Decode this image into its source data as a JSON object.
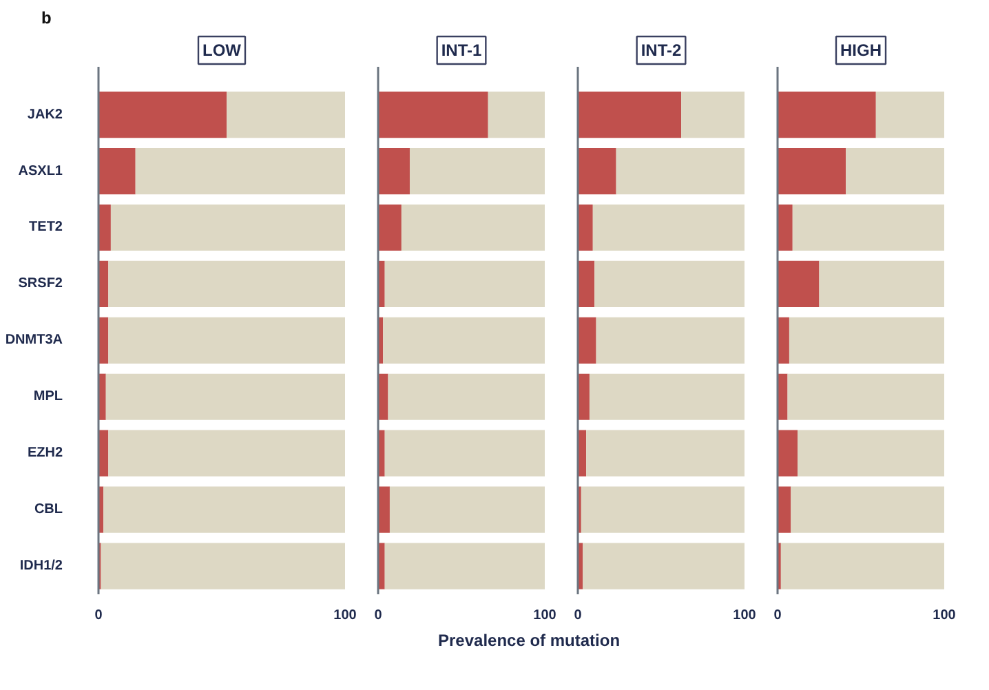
{
  "chart_data": [
    {
      "type": "bar",
      "orientation": "horizontal",
      "stacked": true,
      "title": "LOW",
      "xlabel": "Prevalence of mutation",
      "annotations": [
        "b"
      ],
      "categories": [
        "JAK2",
        "ASXL1",
        "TET2",
        "SRSF2",
        "DNMT3A",
        "MPL",
        "EZH2",
        "CBL",
        "IDH1/2"
      ],
      "series": [
        {
          "color": "#c0504d",
          "values": [
            52,
            15,
            5,
            4,
            4,
            3,
            4,
            2,
            1
          ]
        },
        {
          "color": "#ddd8c4",
          "values": [
            48,
            85,
            95,
            96,
            96,
            97,
            96,
            98,
            99
          ]
        }
      ],
      "xlim": [
        0,
        100
      ],
      "xticks": [
        0,
        100
      ],
      "grid": false
    },
    {
      "type": "bar",
      "orientation": "horizontal",
      "stacked": true,
      "title": "INT-1",
      "categories": [
        null,
        null,
        null,
        null,
        null,
        null,
        null,
        null,
        null
      ],
      "series": [
        {
          "color": "#c0504d",
          "values": [
            66,
            19,
            14,
            4,
            3,
            6,
            4,
            7,
            4
          ]
        },
        {
          "color": "#ddd8c4",
          "values": [
            34,
            81,
            86,
            96,
            97,
            94,
            96,
            93,
            96
          ]
        }
      ],
      "xlim": [
        0,
        100
      ],
      "xticks": [
        0,
        100
      ],
      "grid": false,
      "tick_labels": "x"
    },
    {
      "type": "bar",
      "orientation": "horizontal",
      "stacked": true,
      "title": "INT-2",
      "categories": [
        null,
        null,
        null,
        null,
        null,
        null,
        null,
        null,
        null
      ],
      "series": [
        {
          "color": "#c0504d",
          "values": [
            62,
            23,
            9,
            10,
            11,
            7,
            5,
            2,
            3
          ]
        },
        {
          "color": "#ddd8c4",
          "values": [
            38,
            77,
            91,
            90,
            89,
            93,
            95,
            98,
            97
          ]
        }
      ],
      "xlim": [
        0,
        100
      ],
      "xticks": [
        0,
        100
      ],
      "grid": false,
      "tick_labels": "x"
    },
    {
      "type": "bar",
      "orientation": "horizontal",
      "stacked": true,
      "title": "HIGH",
      "categories": [
        null,
        null,
        null,
        null,
        null,
        null,
        null,
        null,
        null
      ],
      "series": [
        {
          "color": "#c0504d",
          "values": [
            59,
            41,
            9,
            25,
            7,
            6,
            12,
            8,
            2
          ]
        },
        {
          "color": "#ddd8c4",
          "values": [
            41,
            59,
            91,
            75,
            93,
            94,
            88,
            92,
            98
          ]
        }
      ],
      "xlim": [
        0,
        100
      ],
      "xticks": [
        0,
        100
      ],
      "grid": false,
      "tick_labels": "x"
    }
  ]
}
